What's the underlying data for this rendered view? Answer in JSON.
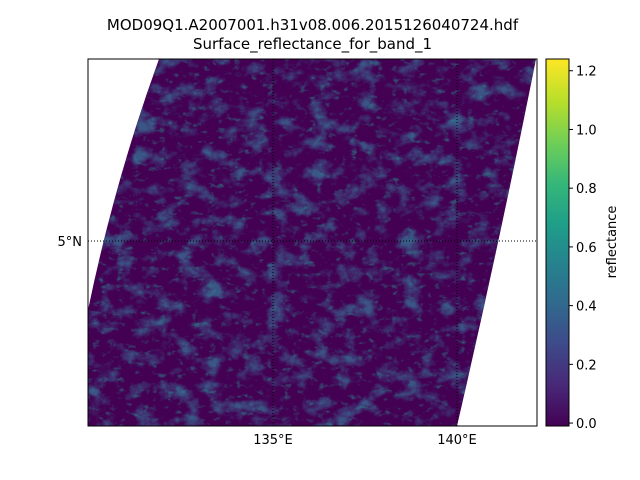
{
  "title": "MOD09Q1.A2007001.h31v08.006.2015126040724.hdf",
  "subtitle": "Surface_reflectance_for_band_1",
  "map": {
    "projection": "sinusoidal swath",
    "graticule": {
      "latitudes": [
        {
          "value": 5,
          "label": "5°N"
        }
      ],
      "longitudes": [
        {
          "value": 135,
          "label": "135°E"
        },
        {
          "value": 140,
          "label": "140°E"
        }
      ],
      "style": "dotted black"
    }
  },
  "colorbar": {
    "label": "reflectance",
    "colormap": "viridis",
    "range": [
      -0.01,
      1.24
    ],
    "ticks": [
      {
        "value": 0.0,
        "label": "0.0"
      },
      {
        "value": 0.2,
        "label": "0.2"
      },
      {
        "value": 0.4,
        "label": "0.4"
      },
      {
        "value": 0.6,
        "label": "0.6"
      },
      {
        "value": 0.8,
        "label": "0.8"
      },
      {
        "value": 1.0,
        "label": "1.0"
      },
      {
        "value": 1.2,
        "label": "1.2"
      }
    ]
  },
  "colors": {
    "background_dark": "#440154",
    "viridis_stops": [
      "#440154",
      "#482878",
      "#3e4989",
      "#31688e",
      "#26828e",
      "#1f9e89",
      "#35b779",
      "#6ece58",
      "#b5de2b",
      "#fde725"
    ]
  }
}
